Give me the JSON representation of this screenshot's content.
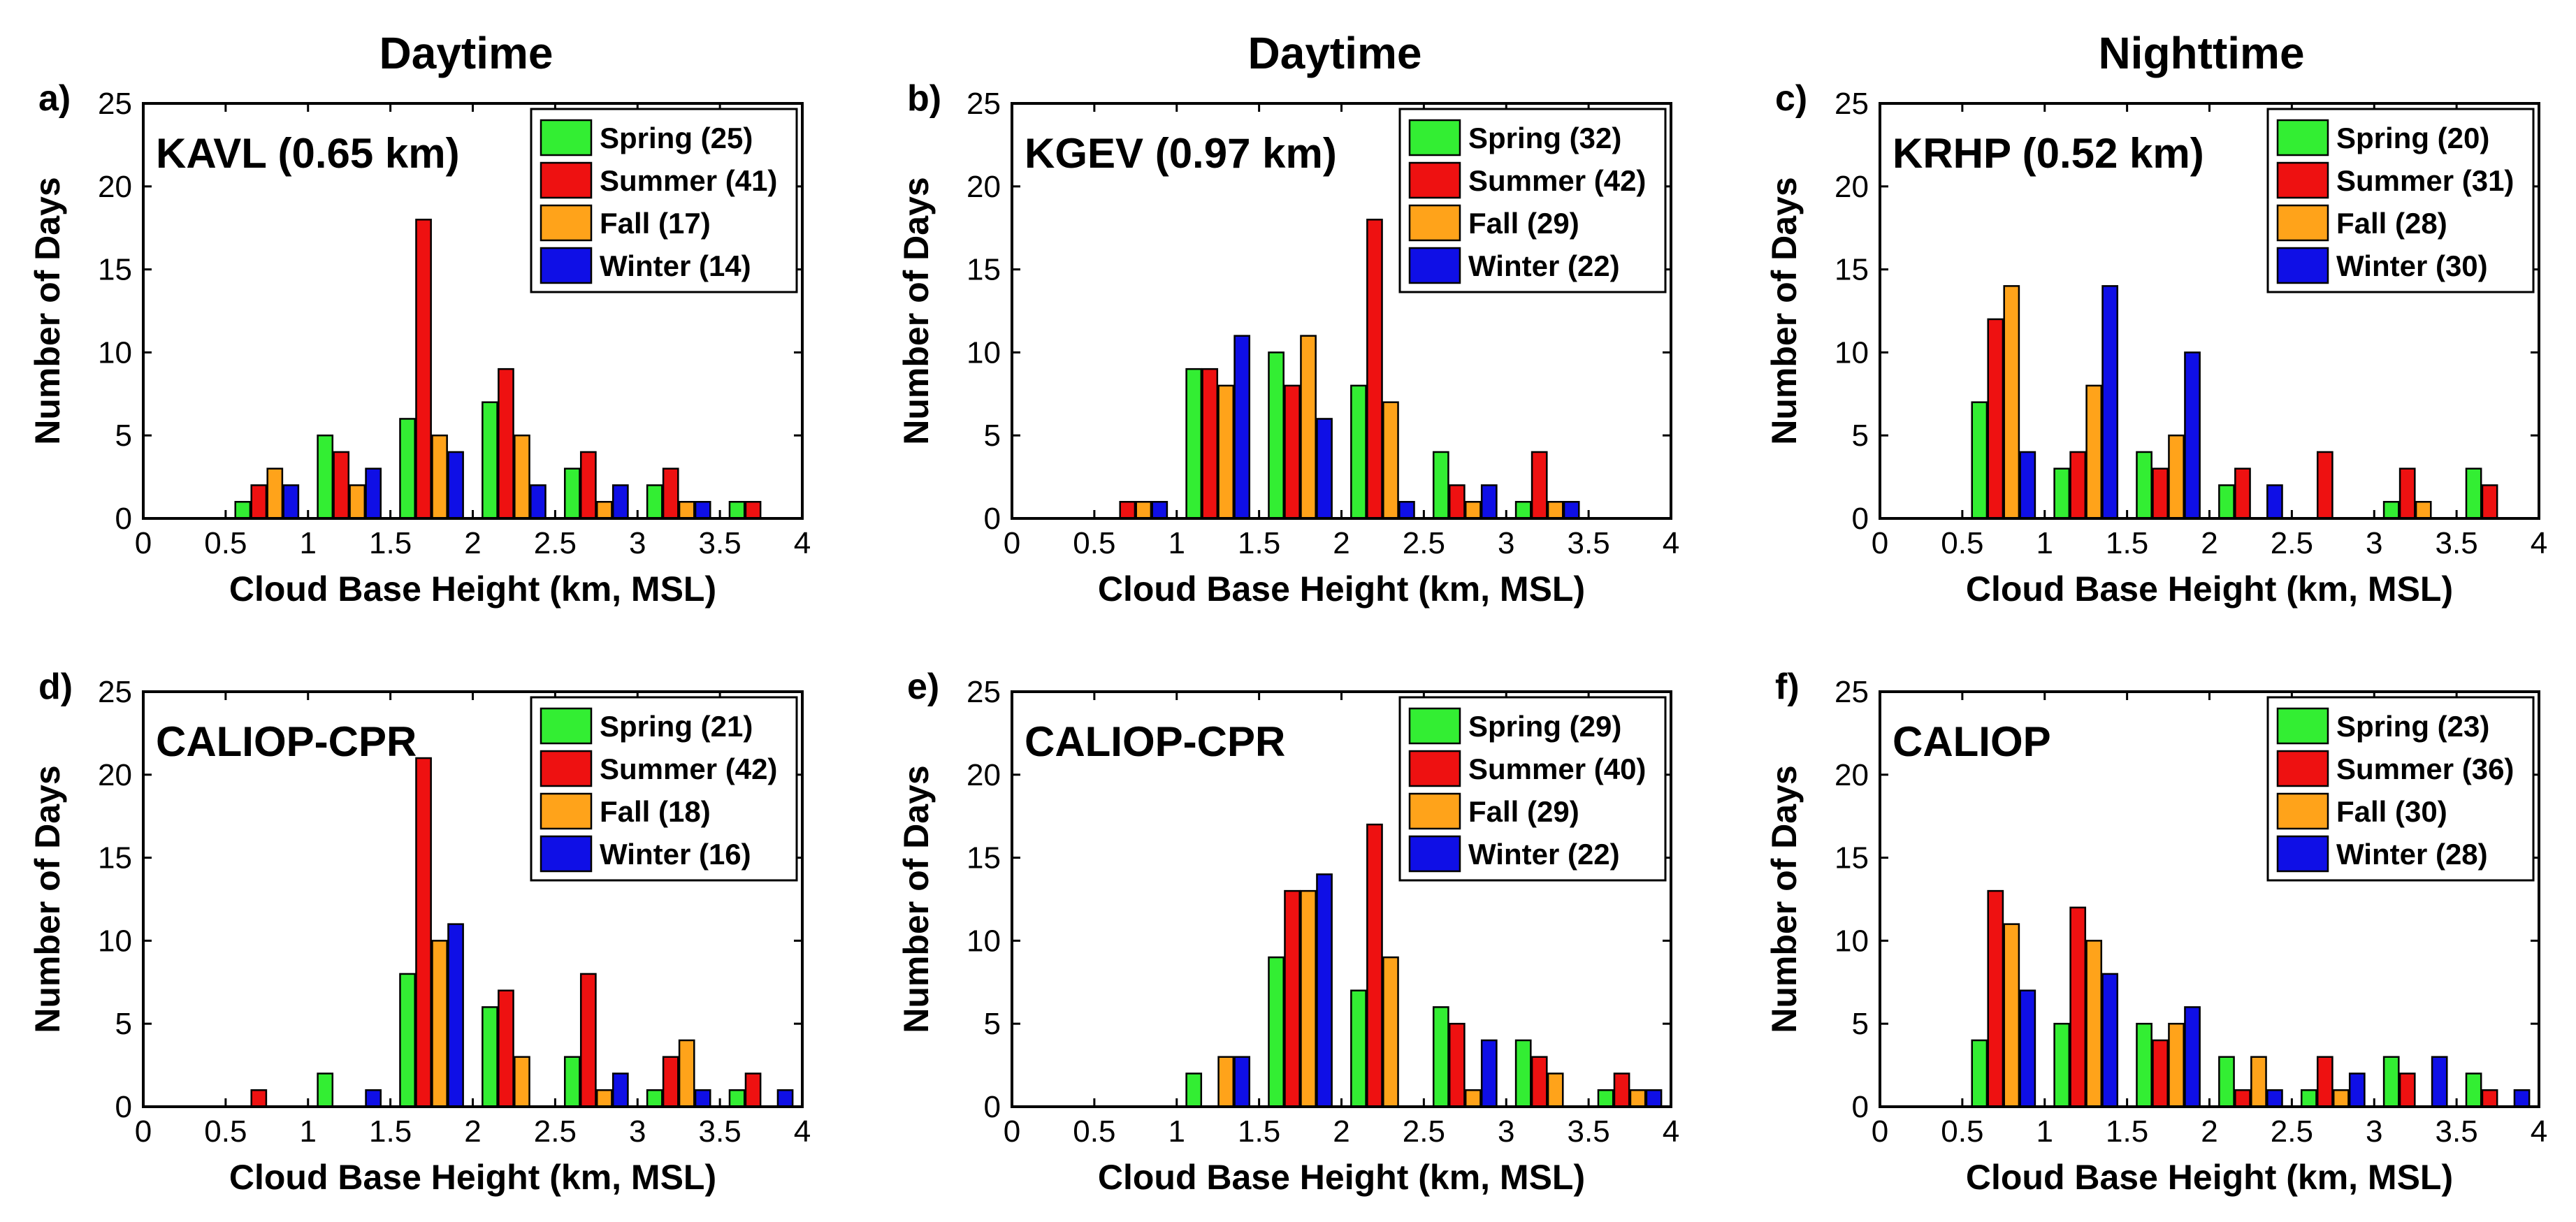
{
  "figure": {
    "column_titles": [
      "Daytime",
      "Daytime",
      "Nighttime"
    ]
  },
  "colors": {
    "spring": "#33ee33",
    "summer": "#ee1111",
    "fall": "#ffa31a",
    "winter": "#0f0fe6"
  },
  "chart_data": [
    {
      "type": "bar",
      "panel_label": "a)",
      "station_label": "KAVL (0.65 km)",
      "xlabel": "Cloud Base Height (km, MSL)",
      "ylabel": "Number of Days",
      "xlim": [
        0,
        4
      ],
      "ylim": [
        0,
        25
      ],
      "x_ticks": [
        "0",
        "0.5",
        "1",
        "1.5",
        "2",
        "2.5",
        "3",
        "3.5",
        "4"
      ],
      "y_ticks": [
        "0",
        "5",
        "10",
        "15",
        "20",
        "25"
      ],
      "legend_position": "top-right",
      "categories": [
        0.25,
        0.75,
        1.25,
        1.75,
        2.25,
        2.75,
        3.25,
        3.75
      ],
      "series": [
        {
          "name": "Spring (25)",
          "values": [
            0,
            1,
            5,
            6,
            7,
            3,
            2,
            1
          ]
        },
        {
          "name": "Summer (41)",
          "values": [
            0,
            2,
            4,
            18,
            9,
            4,
            3,
            1
          ]
        },
        {
          "name": "Fall (17)",
          "values": [
            0,
            3,
            2,
            5,
            5,
            1,
            1,
            0
          ]
        },
        {
          "name": "Winter (14)",
          "values": [
            0,
            2,
            3,
            4,
            2,
            2,
            1,
            0
          ]
        }
      ]
    },
    {
      "type": "bar",
      "panel_label": "b)",
      "station_label": "KGEV (0.97 km)",
      "xlabel": "Cloud Base Height (km, MSL)",
      "ylabel": "Number of Days",
      "xlim": [
        0,
        4
      ],
      "ylim": [
        0,
        25
      ],
      "x_ticks": [
        "0",
        "0.5",
        "1",
        "1.5",
        "2",
        "2.5",
        "3",
        "3.5",
        "4"
      ],
      "y_ticks": [
        "0",
        "5",
        "10",
        "15",
        "20",
        "25"
      ],
      "legend_position": "top-right",
      "categories": [
        0.25,
        0.75,
        1.25,
        1.75,
        2.25,
        2.75,
        3.25,
        3.75
      ],
      "series": [
        {
          "name": "Spring (32)",
          "values": [
            0,
            0,
            9,
            10,
            8,
            4,
            1,
            0
          ]
        },
        {
          "name": "Summer (42)",
          "values": [
            0,
            1,
            9,
            8,
            18,
            2,
            4,
            0
          ]
        },
        {
          "name": "Fall (29)",
          "values": [
            0,
            1,
            8,
            11,
            7,
            1,
            1,
            0
          ]
        },
        {
          "name": "Winter (22)",
          "values": [
            0,
            1,
            11,
            6,
            1,
            2,
            1,
            0
          ]
        }
      ]
    },
    {
      "type": "bar",
      "panel_label": "c)",
      "station_label": "KRHP (0.52 km)",
      "xlabel": "Cloud Base Height (km, MSL)",
      "ylabel": "Number of Days",
      "xlim": [
        0,
        4
      ],
      "ylim": [
        0,
        25
      ],
      "x_ticks": [
        "0",
        "0.5",
        "1",
        "1.5",
        "2",
        "2.5",
        "3",
        "3.5",
        "4"
      ],
      "y_ticks": [
        "0",
        "5",
        "10",
        "15",
        "20",
        "25"
      ],
      "legend_position": "top-right",
      "categories": [
        0.25,
        0.75,
        1.25,
        1.75,
        2.25,
        2.75,
        3.25,
        3.75
      ],
      "series": [
        {
          "name": "Spring (20)",
          "values": [
            0,
            7,
            3,
            4,
            2,
            0,
            1,
            3
          ]
        },
        {
          "name": "Summer (31)",
          "values": [
            0,
            12,
            4,
            3,
            3,
            4,
            3,
            2
          ]
        },
        {
          "name": "Fall (28)",
          "values": [
            0,
            14,
            8,
            5,
            0,
            0,
            1,
            0
          ]
        },
        {
          "name": "Winter (30)",
          "values": [
            0,
            4,
            14,
            10,
            2,
            0,
            0,
            0
          ]
        }
      ]
    },
    {
      "type": "bar",
      "panel_label": "d)",
      "station_label": "CALIOP-CPR",
      "xlabel": "Cloud Base Height (km, MSL)",
      "ylabel": "Number of Days",
      "xlim": [
        0,
        4
      ],
      "ylim": [
        0,
        25
      ],
      "x_ticks": [
        "0",
        "0.5",
        "1",
        "1.5",
        "2",
        "2.5",
        "3",
        "3.5",
        "4"
      ],
      "y_ticks": [
        "0",
        "5",
        "10",
        "15",
        "20",
        "25"
      ],
      "legend_position": "top-right",
      "categories": [
        0.25,
        0.75,
        1.25,
        1.75,
        2.25,
        2.75,
        3.25,
        3.75
      ],
      "series": [
        {
          "name": "Spring (21)",
          "values": [
            0,
            0,
            2,
            8,
            6,
            3,
            1,
            1
          ]
        },
        {
          "name": "Summer (42)",
          "values": [
            0,
            1,
            0,
            21,
            7,
            8,
            3,
            2
          ]
        },
        {
          "name": "Fall (18)",
          "values": [
            0,
            0,
            0,
            10,
            3,
            1,
            4,
            0
          ]
        },
        {
          "name": "Winter (16)",
          "values": [
            0,
            0,
            1,
            11,
            0,
            2,
            1,
            1
          ]
        }
      ]
    },
    {
      "type": "bar",
      "panel_label": "e)",
      "station_label": "CALIOP-CPR",
      "xlabel": "Cloud Base Height (km, MSL)",
      "ylabel": "Number of Days",
      "xlim": [
        0,
        4
      ],
      "ylim": [
        0,
        25
      ],
      "x_ticks": [
        "0",
        "0.5",
        "1",
        "1.5",
        "2",
        "2.5",
        "3",
        "3.5",
        "4"
      ],
      "y_ticks": [
        "0",
        "5",
        "10",
        "15",
        "20",
        "25"
      ],
      "legend_position": "top-right",
      "categories": [
        0.25,
        0.75,
        1.25,
        1.75,
        2.25,
        2.75,
        3.25,
        3.75
      ],
      "series": [
        {
          "name": "Spring (29)",
          "values": [
            0,
            0,
            2,
            9,
            7,
            6,
            4,
            1
          ]
        },
        {
          "name": "Summer (40)",
          "values": [
            0,
            0,
            0,
            13,
            17,
            5,
            3,
            2
          ]
        },
        {
          "name": "Fall (29)",
          "values": [
            0,
            0,
            3,
            13,
            9,
            1,
            2,
            1
          ]
        },
        {
          "name": "Winter (22)",
          "values": [
            0,
            0,
            3,
            14,
            0,
            4,
            0,
            1
          ]
        }
      ]
    },
    {
      "type": "bar",
      "panel_label": "f)",
      "station_label": "CALIOP",
      "xlabel": "Cloud Base Height (km, MSL)",
      "ylabel": "Number of Days",
      "xlim": [
        0,
        4
      ],
      "ylim": [
        0,
        25
      ],
      "x_ticks": [
        "0",
        "0.5",
        "1",
        "1.5",
        "2",
        "2.5",
        "3",
        "3.5",
        "4"
      ],
      "y_ticks": [
        "0",
        "5",
        "10",
        "15",
        "20",
        "25"
      ],
      "legend_position": "top-right",
      "categories": [
        0.25,
        0.75,
        1.25,
        1.75,
        2.25,
        2.75,
        3.25,
        3.75
      ],
      "series": [
        {
          "name": "Spring (23)",
          "values": [
            0,
            4,
            5,
            5,
            3,
            1,
            3,
            2
          ]
        },
        {
          "name": "Summer (36)",
          "values": [
            0,
            13,
            12,
            4,
            1,
            3,
            2,
            1
          ]
        },
        {
          "name": "Fall (30)",
          "values": [
            0,
            11,
            10,
            5,
            3,
            1,
            0,
            0
          ]
        },
        {
          "name": "Winter (28)",
          "values": [
            0,
            7,
            8,
            6,
            1,
            2,
            3,
            1
          ]
        }
      ]
    }
  ]
}
